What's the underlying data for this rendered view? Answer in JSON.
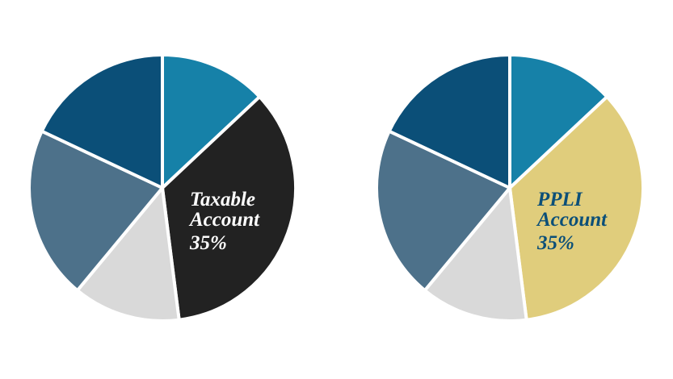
{
  "chart_data": [
    {
      "type": "pie",
      "categories": [
        null,
        "Taxable Account",
        null,
        null,
        null
      ],
      "values": [
        13,
        35,
        13,
        21,
        18
      ],
      "value_labels": [
        null,
        "35%",
        null,
        null,
        null
      ],
      "colors": [
        "#1681a8",
        "#222222",
        "#d9d9d9",
        "#4d718a",
        "#0b4f78"
      ],
      "label_color": "#ffffff"
    },
    {
      "type": "pie",
      "categories": [
        null,
        "PPLI Account",
        null,
        null,
        null
      ],
      "values": [
        13,
        35,
        13,
        21,
        18
      ],
      "value_labels": [
        null,
        "35%",
        null,
        null,
        null
      ],
      "colors": [
        "#1681a8",
        "#e0cd7c",
        "#d9d9d9",
        "#4d718a",
        "#0b4f78"
      ],
      "label_color": "#0b4f78"
    }
  ]
}
